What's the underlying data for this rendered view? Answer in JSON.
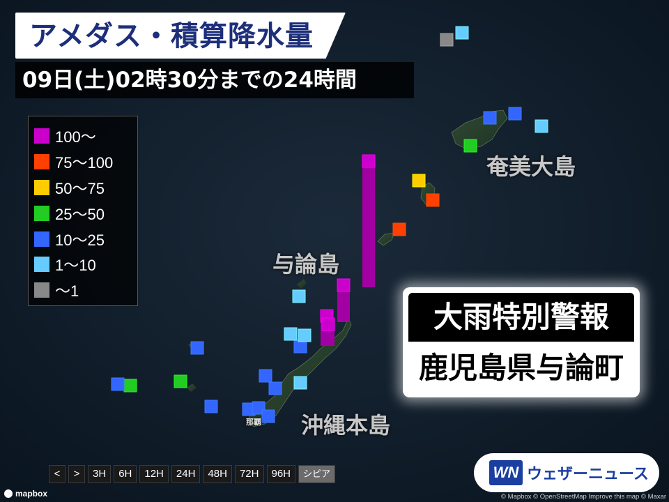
{
  "header": {
    "title": "アメダス・積算降水量",
    "subtitle": "09日(土)02時30分までの24時間"
  },
  "legend": [
    {
      "label": "100～",
      "color": "#cc00cc"
    },
    {
      "label": "75～100",
      "color": "#ff4000"
    },
    {
      "label": "50～75",
      "color": "#ffcc00"
    },
    {
      "label": "25～50",
      "color": "#22cc22"
    },
    {
      "label": "10～25",
      "color": "#3366ff"
    },
    {
      "label": "1～10",
      "color": "#66ccff"
    },
    {
      "label": "～1",
      "color": "#888888"
    }
  ],
  "map_labels": {
    "amami": "奄美大島",
    "yoron": "与論島",
    "okinawa": "沖縄本島",
    "naha": "那覇"
  },
  "warning": {
    "headline": "大雨特別警報",
    "area": "鹿児島県与論町"
  },
  "timebar": {
    "prev": "<",
    "next": ">",
    "periods": [
      "3H",
      "6H",
      "12H",
      "24H",
      "48H",
      "72H",
      "96H"
    ],
    "mode": "シピア"
  },
  "brand": {
    "logo": "WN",
    "name": "ウェザーニュース"
  },
  "attribution": {
    "mapbox": "mapbox",
    "credits": "© Mapbox © OpenStreetMap  Improve this map  © Maxar"
  }
}
